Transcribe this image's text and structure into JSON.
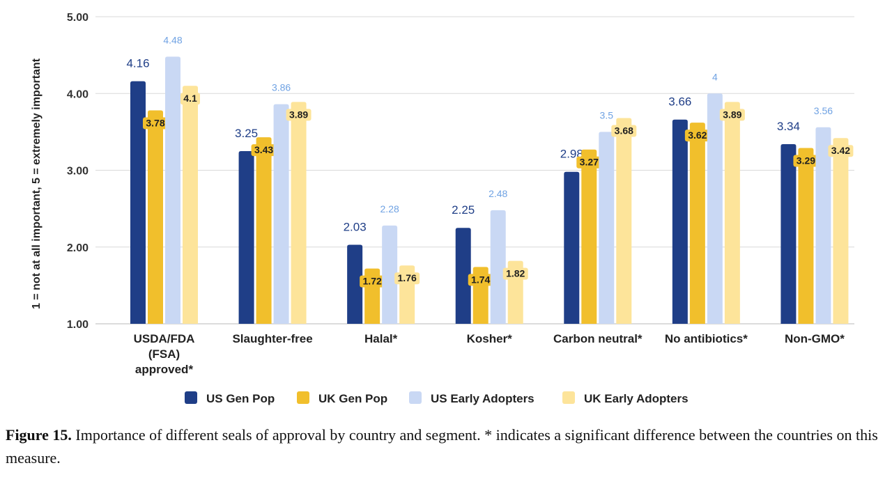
{
  "chart_data": {
    "type": "bar",
    "title": "",
    "xlabel": "",
    "ylabel": "1 = not at all important, 5 = extremely important",
    "ylim": [
      1,
      5
    ],
    "yticks": [
      "1.00",
      "2.00",
      "3.00",
      "4.00",
      "5.00"
    ],
    "grid": true,
    "legend_position": "bottom",
    "categories": [
      [
        "USDA/FDA",
        "(FSA)",
        "approved*"
      ],
      [
        "Slaughter-free"
      ],
      [
        "Halal*"
      ],
      [
        "Kosher*"
      ],
      [
        "Carbon neutral*"
      ],
      [
        "No antibiotics*"
      ],
      [
        "Non-GMO*"
      ]
    ],
    "series": [
      {
        "name": "US Gen Pop",
        "color": "#1f3e87",
        "label_color": "#1f3e87",
        "values": [
          4.16,
          3.25,
          2.03,
          2.25,
          2.98,
          3.66,
          3.34
        ],
        "labels": [
          "4.16",
          "3.25",
          "2.03",
          "2.25",
          "2.98",
          "3.66",
          "3.34"
        ]
      },
      {
        "name": "UK Gen Pop",
        "color": "#f1bf2c",
        "label_color": "#202020",
        "values": [
          3.78,
          3.43,
          1.72,
          1.74,
          3.27,
          3.62,
          3.29
        ],
        "labels": [
          "3.78",
          "3.43",
          "1.72",
          "1.74",
          "3.27",
          "3.62",
          "3.29"
        ]
      },
      {
        "name": "US Early Adopters",
        "color": "#c9d8f4",
        "label_color": "#6fa2e3",
        "values": [
          4.48,
          3.86,
          2.28,
          2.48,
          3.5,
          4.0,
          3.56
        ],
        "labels": [
          "4.48",
          "3.86",
          "2.28",
          "2.48",
          "3.5",
          "4",
          "3.56"
        ]
      },
      {
        "name": "UK Early Adopters",
        "color": "#fde49a",
        "label_color": "#202020",
        "values": [
          4.1,
          3.89,
          1.76,
          1.82,
          3.68,
          3.89,
          3.42
        ],
        "labels": [
          "4.1",
          "3.89",
          "1.76",
          "1.82",
          "3.68",
          "3.89",
          "3.42"
        ]
      }
    ]
  },
  "caption": {
    "label": "Figure 15.",
    "text": " Importance of different seals of approval by country and segment. * indicates a significant difference between the countries on this measure."
  }
}
